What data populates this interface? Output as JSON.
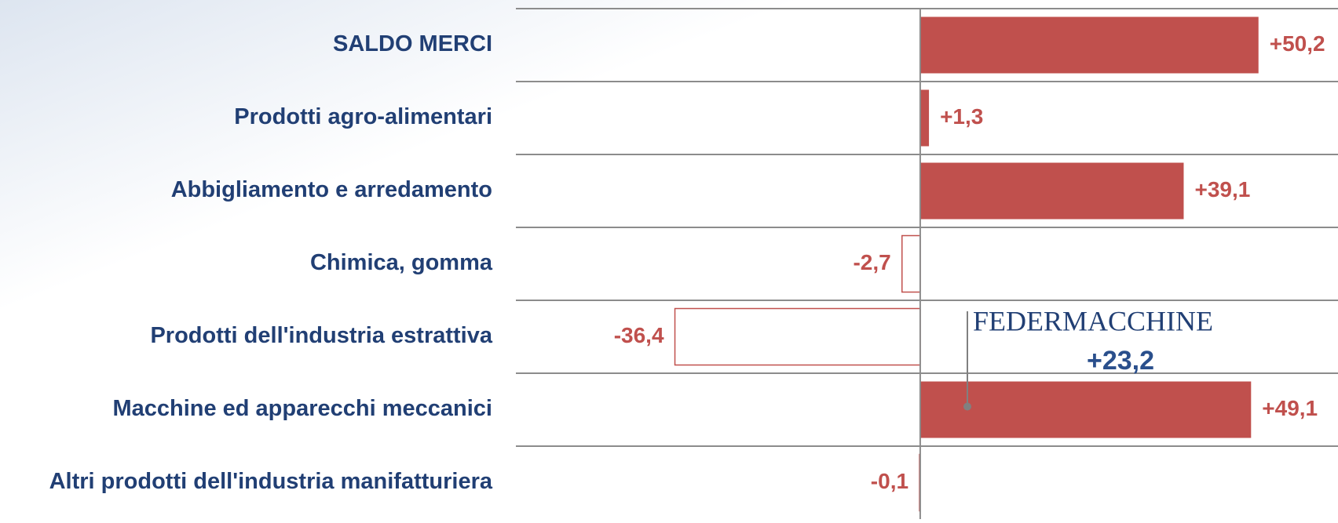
{
  "chart_data": {
    "type": "bar",
    "orientation": "horizontal",
    "categories": [
      "SALDO MERCI",
      "Prodotti agro-alimentari",
      "Abbigliamento e arredamento",
      "Chimica, gomma",
      "Prodotti dell'industria estrattiva",
      "Macchine ed apparecchi meccanici",
      "Altri prodotti dell'industria manifatturiera"
    ],
    "values": [
      50.2,
      1.3,
      39.1,
      -2.7,
      -36.4,
      49.1,
      -0.1
    ],
    "value_labels": [
      "+50,2",
      "+1,3",
      "+39,1",
      "-2,7",
      "-36,4",
      "+49,1",
      "-0,1"
    ],
    "color": "#c0504d",
    "xlim": [
      -60,
      62
    ],
    "annotations": [
      {
        "text": "FEDERMACCHINE",
        "value_text": "+23,2",
        "category_index": 5
      }
    ]
  }
}
